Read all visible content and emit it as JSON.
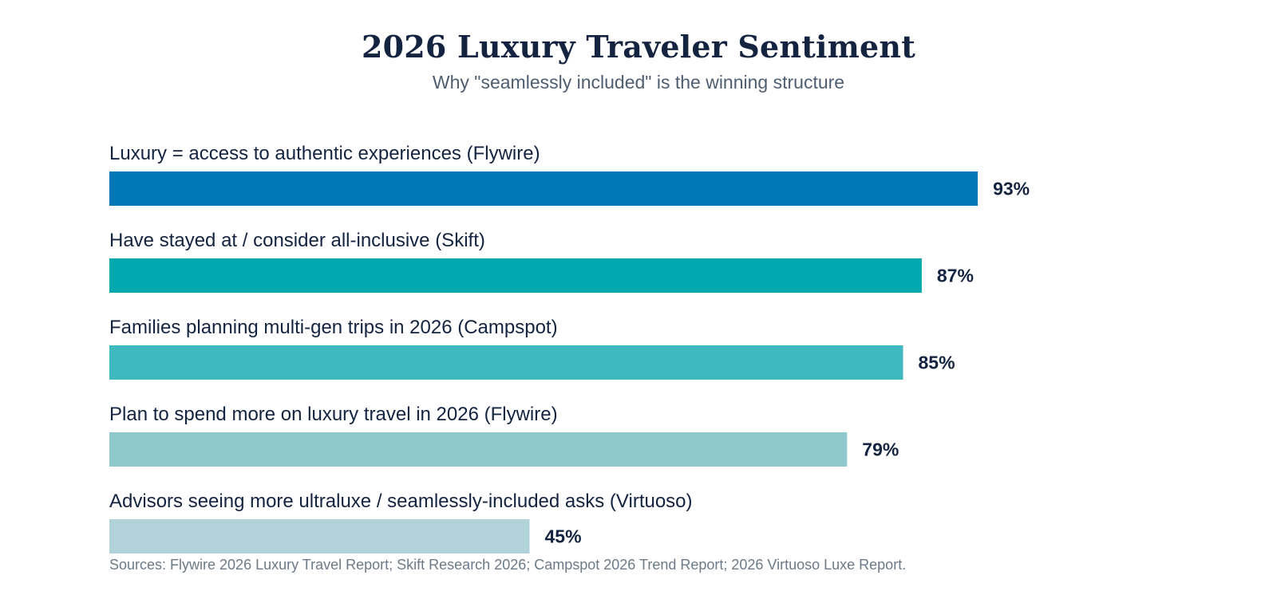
{
  "chart_data": {
    "type": "bar",
    "orientation": "horizontal",
    "title": "2026 Luxury Traveler Sentiment",
    "subtitle": "Why \"seamlessly included\" is the winning structure",
    "categories": [
      "Luxury = access to authentic experiences (Flywire)",
      "Have stayed at / consider all-inclusive (Skift)",
      "Families planning multi-gen trips in 2026 (Campspot)",
      "Plan to spend more on luxury travel in 2026 (Flywire)",
      "Advisors seeing more ultraluxe / seamlessly-included asks (Virtuoso)"
    ],
    "values": [
      93,
      87,
      85,
      79,
      45
    ],
    "value_labels": [
      "93%",
      "87%",
      "85%",
      "79%",
      "45%"
    ],
    "bar_colors": [
      "#0077b6",
      "#00a8b0",
      "#40b8c0",
      "#8ec8cd",
      "#b1d2d8"
    ],
    "xlim": [
      0,
      100
    ],
    "grid": false,
    "legend": "none",
    "source": "Sources: Flywire 2026 Luxury Travel Report; Skift Research 2026; Campspot 2026 Trend Report; 2026 Virtuoso Luxe Report."
  }
}
